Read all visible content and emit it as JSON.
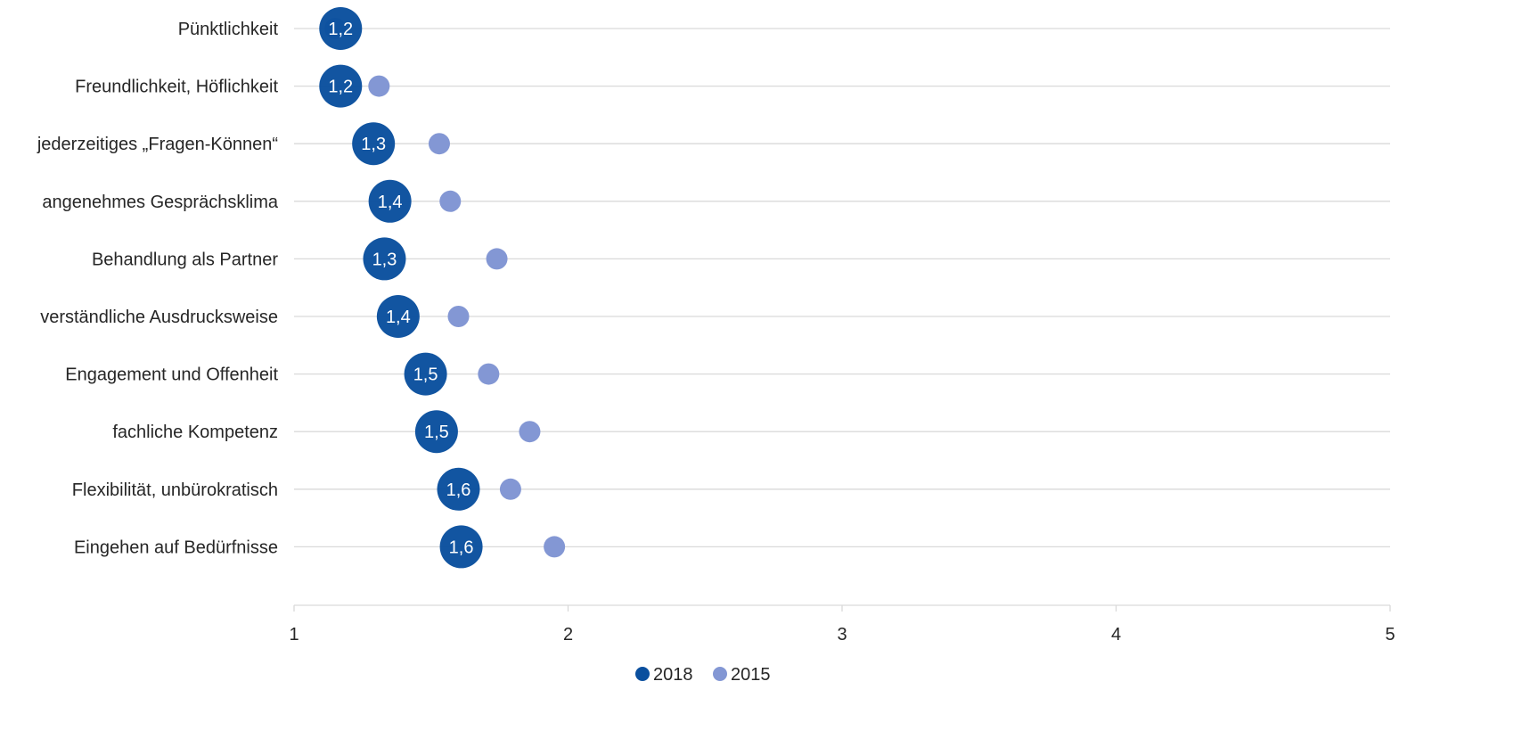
{
  "chart_data": {
    "type": "scatter",
    "categories": [
      "Pünktlichkeit",
      "Freundlichkeit, Höflichkeit",
      "jederzeitiges „Fragen-Können“",
      "angenehmes Gesprächsklima",
      "Behandlung als Partner",
      "verständliche Ausdrucksweise",
      "Engagement und Offenheit",
      "fachliche Kompetenz",
      "Flexibilität, unbürokratisch",
      "Eingehen auf Bedürfnisse"
    ],
    "series": [
      {
        "name": "2018",
        "color": "#0a4f9e",
        "values": [
          1.17,
          1.17,
          1.29,
          1.35,
          1.33,
          1.38,
          1.48,
          1.52,
          1.6,
          1.61
        ],
        "labels": [
          "1,2",
          "1,2",
          "1,3",
          "1,4",
          "1,3",
          "1,4",
          "1,5",
          "1,5",
          "1,6",
          "1,6"
        ]
      },
      {
        "name": "2015",
        "color": "#8397d4",
        "values": [
          1.15,
          1.31,
          1.53,
          1.57,
          1.74,
          1.6,
          1.71,
          1.86,
          1.79,
          1.95
        ]
      }
    ],
    "xlim": [
      1,
      5
    ],
    "xticks": [
      "1",
      "2",
      "3",
      "4",
      "5"
    ],
    "grid": "horizontal",
    "legend": "bottom"
  }
}
